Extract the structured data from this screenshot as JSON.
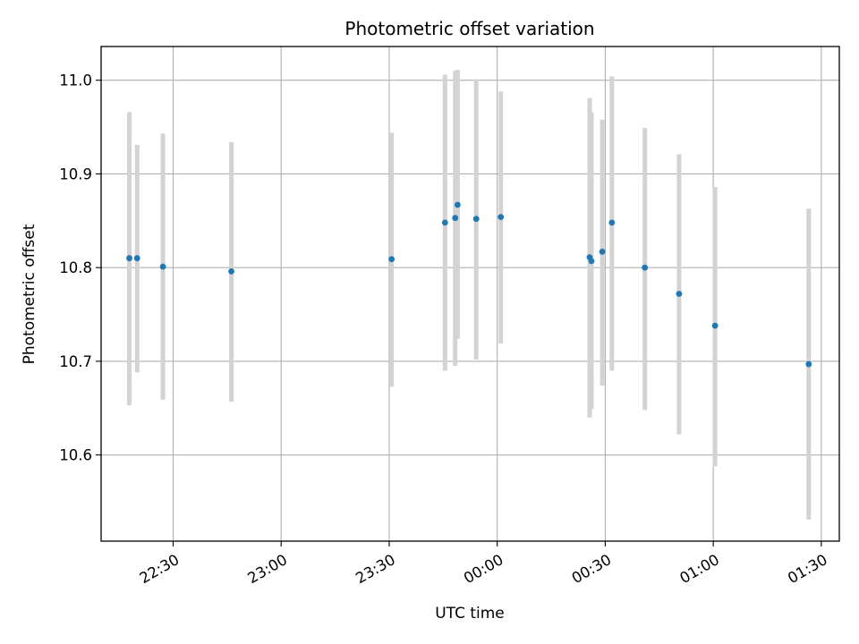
{
  "chart_data": {
    "type": "scatter",
    "title": "Photometric offset variation",
    "xlabel": "UTC time",
    "ylabel": "Photometric offset",
    "grid": true,
    "xlim": [
      "22:10",
      "01:35"
    ],
    "ylim": [
      10.508,
      11.036
    ],
    "x_ticks": [
      "22:30",
      "23:00",
      "23:30",
      "00:00",
      "00:30",
      "01:00",
      "01:30"
    ],
    "y_ticks": [
      "10.6",
      "10.7",
      "10.8",
      "10.9",
      "11.0"
    ],
    "colors": {
      "marker": "#1f77b4",
      "errorbar": "#d3d3d3",
      "grid": "#b0b0b0"
    },
    "points": [
      {
        "x": "22:17:50",
        "y": 10.81,
        "ylow": 10.653,
        "yhigh": 10.966
      },
      {
        "x": "22:20:00",
        "y": 10.81,
        "ylow": 10.688,
        "yhigh": 10.931
      },
      {
        "x": "22:27:10",
        "y": 10.801,
        "ylow": 10.659,
        "yhigh": 10.943
      },
      {
        "x": "22:46:10",
        "y": 10.796,
        "ylow": 10.657,
        "yhigh": 10.934
      },
      {
        "x": "23:30:40",
        "y": 10.809,
        "ylow": 10.673,
        "yhigh": 10.944
      },
      {
        "x": "23:45:30",
        "y": 10.848,
        "ylow": 10.69,
        "yhigh": 11.006
      },
      {
        "x": "23:48:20",
        "y": 10.853,
        "ylow": 10.695,
        "yhigh": 11.01
      },
      {
        "x": "23:49:00",
        "y": 10.867,
        "ylow": 10.724,
        "yhigh": 11.011
      },
      {
        "x": "23:54:10",
        "y": 10.852,
        "ylow": 10.702,
        "yhigh": 11.001
      },
      {
        "x": "00:01:00",
        "y": 10.854,
        "ylow": 10.719,
        "yhigh": 10.988
      },
      {
        "x": "00:25:40",
        "y": 10.811,
        "ylow": 10.64,
        "yhigh": 10.981
      },
      {
        "x": "00:26:10",
        "y": 10.807,
        "ylow": 10.649,
        "yhigh": 10.966
      },
      {
        "x": "00:29:10",
        "y": 10.817,
        "ylow": 10.674,
        "yhigh": 10.958
      },
      {
        "x": "00:31:50",
        "y": 10.848,
        "ylow": 10.69,
        "yhigh": 11.004
      },
      {
        "x": "00:41:00",
        "y": 10.8,
        "ylow": 10.648,
        "yhigh": 10.949
      },
      {
        "x": "00:50:30",
        "y": 10.772,
        "ylow": 10.622,
        "yhigh": 10.921
      },
      {
        "x": "01:00:30",
        "y": 10.738,
        "ylow": 10.588,
        "yhigh": 10.886
      },
      {
        "x": "01:26:30",
        "y": 10.697,
        "ylow": 10.531,
        "yhigh": 10.863
      }
    ]
  }
}
